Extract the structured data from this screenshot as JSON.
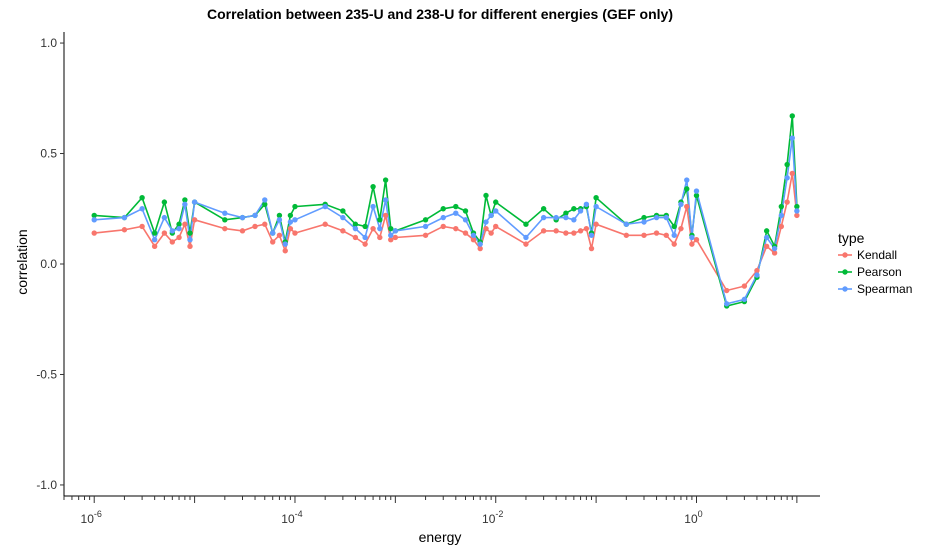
{
  "chart_data": {
    "type": "line",
    "title": "Correlation between 235-U and 238-U for different energies (GEF only)",
    "xlabel": "energy",
    "ylabel": "correlation",
    "x_scale": "log10",
    "xlim": [
      5e-07,
      17
    ],
    "ylim": [
      -1.05,
      1.05
    ],
    "y_ticks": [
      -1.0,
      -0.5,
      0.0,
      0.5,
      1.0
    ],
    "y_tick_labels": [
      "-1.0",
      "-0.5",
      "0.0",
      "0.5",
      "1.0"
    ],
    "x_tick_labels": [
      {
        "base": "10",
        "exp": "-6"
      },
      {
        "base": "10",
        "exp": "-4"
      },
      {
        "base": "10",
        "exp": "-2"
      },
      {
        "base": "10",
        "exp": "0"
      }
    ],
    "grid": false,
    "legend": {
      "title": "type",
      "position": "right"
    },
    "x": [
      1e-06,
      2e-06,
      3e-06,
      4e-06,
      5e-06,
      6e-06,
      7e-06,
      8e-06,
      9e-06,
      1e-05,
      2e-05,
      3e-05,
      4e-05,
      5e-05,
      6e-05,
      7e-05,
      8e-05,
      9e-05,
      0.0001,
      0.0002,
      0.0003,
      0.0004,
      0.0005,
      0.0006,
      0.0007,
      0.0008,
      0.0009,
      0.001,
      0.002,
      0.003,
      0.004,
      0.005,
      0.006,
      0.007,
      0.008,
      0.009,
      0.01,
      0.02,
      0.03,
      0.04,
      0.05,
      0.06,
      0.07,
      0.08,
      0.09,
      0.1,
      0.2,
      0.3,
      0.4,
      0.5,
      0.6,
      0.7,
      0.8,
      0.9,
      1.0,
      2.0,
      3.0,
      4.0,
      5.0,
      6.0,
      7.0,
      8.0,
      9.0,
      10.0
    ],
    "series": [
      {
        "name": "Kendall",
        "color": "#F8766D",
        "values": [
          0.14,
          0.155,
          0.17,
          0.08,
          0.14,
          0.1,
          0.12,
          0.18,
          0.08,
          0.2,
          0.16,
          0.15,
          0.17,
          0.18,
          0.1,
          0.13,
          0.06,
          0.16,
          0.14,
          0.18,
          0.15,
          0.12,
          0.09,
          0.16,
          0.12,
          0.22,
          0.11,
          0.12,
          0.13,
          0.17,
          0.16,
          0.14,
          0.11,
          0.07,
          0.16,
          0.14,
          0.17,
          0.09,
          0.15,
          0.15,
          0.14,
          0.14,
          0.15,
          0.16,
          0.07,
          0.18,
          0.13,
          0.13,
          0.14,
          0.13,
          0.09,
          0.16,
          0.26,
          0.09,
          0.11,
          -0.12,
          -0.1,
          -0.03,
          0.08,
          0.05,
          0.17,
          0.28,
          0.41,
          0.22
        ]
      },
      {
        "name": "Pearson",
        "color": "#00BA38",
        "values": [
          0.22,
          0.21,
          0.3,
          0.14,
          0.28,
          0.14,
          0.18,
          0.29,
          0.14,
          0.28,
          0.2,
          0.21,
          0.22,
          0.27,
          0.14,
          0.22,
          0.1,
          0.22,
          0.26,
          0.27,
          0.24,
          0.18,
          0.17,
          0.35,
          0.2,
          0.38,
          0.16,
          0.15,
          0.2,
          0.25,
          0.26,
          0.24,
          0.14,
          0.1,
          0.31,
          0.22,
          0.28,
          0.18,
          0.25,
          0.2,
          0.23,
          0.25,
          0.25,
          0.26,
          0.14,
          0.3,
          0.18,
          0.21,
          0.22,
          0.22,
          0.17,
          0.28,
          0.34,
          0.13,
          0.31,
          -0.19,
          -0.17,
          -0.06,
          0.15,
          0.08,
          0.26,
          0.45,
          0.67,
          0.26
        ]
      },
      {
        "name": "Spearman",
        "color": "#619CFF",
        "values": [
          0.2,
          0.21,
          0.25,
          0.11,
          0.21,
          0.15,
          0.16,
          0.27,
          0.11,
          0.28,
          0.23,
          0.21,
          0.22,
          0.29,
          0.14,
          0.2,
          0.09,
          0.19,
          0.2,
          0.26,
          0.21,
          0.16,
          0.12,
          0.26,
          0.16,
          0.29,
          0.13,
          0.15,
          0.17,
          0.21,
          0.23,
          0.2,
          0.13,
          0.09,
          0.19,
          0.22,
          0.24,
          0.12,
          0.21,
          0.21,
          0.21,
          0.2,
          0.24,
          0.27,
          0.13,
          0.26,
          0.18,
          0.19,
          0.21,
          0.21,
          0.13,
          0.27,
          0.38,
          0.12,
          0.33,
          -0.18,
          -0.16,
          -0.05,
          0.12,
          0.07,
          0.22,
          0.39,
          0.57,
          0.24
        ]
      }
    ]
  }
}
